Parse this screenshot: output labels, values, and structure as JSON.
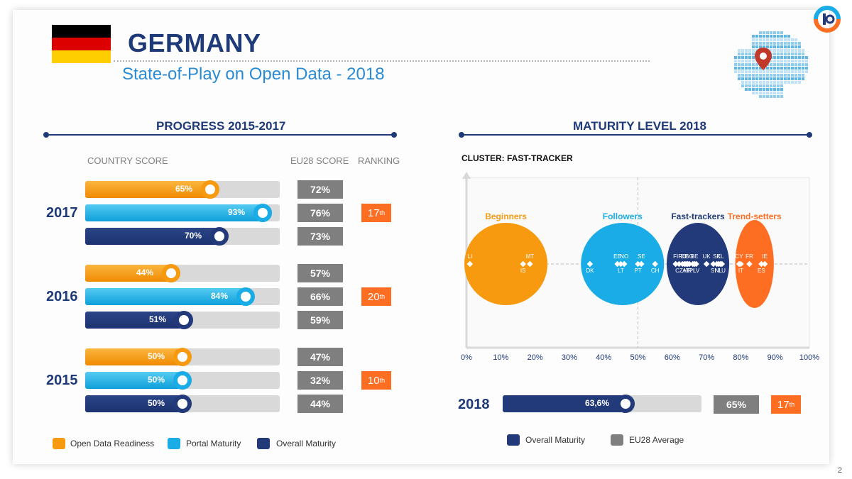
{
  "header": {
    "title": "GERMANY",
    "subtitle": "State-of-Play on Open Data - 2018",
    "flag_colors": [
      "#000000",
      "#dd0000",
      "#ffce00"
    ]
  },
  "progress": {
    "section_title": "PROGRESS 2015-2017",
    "col_country": "COUNTRY SCORE",
    "col_eu28": "EU28 SCORE",
    "col_ranking": "RANKING",
    "years": [
      {
        "year": "2017",
        "bars": [
          {
            "metric": "Open Data Readiness",
            "value": 65,
            "label": "65%",
            "eu28": "72%"
          },
          {
            "metric": "Portal Maturity",
            "value": 93,
            "label": "93%",
            "eu28": "76%"
          },
          {
            "metric": "Overall Maturity",
            "value": 70,
            "label": "70%",
            "eu28": "73%"
          }
        ],
        "rank_num": "17",
        "rank_suffix": "th"
      },
      {
        "year": "2016",
        "bars": [
          {
            "metric": "Open Data Readiness",
            "value": 44,
            "label": "44%",
            "eu28": "57%"
          },
          {
            "metric": "Portal Maturity",
            "value": 84,
            "label": "84%",
            "eu28": "66%"
          },
          {
            "metric": "Overall Maturity",
            "value": 51,
            "label": "51%",
            "eu28": "59%"
          }
        ],
        "rank_num": "20",
        "rank_suffix": "th"
      },
      {
        "year": "2015",
        "bars": [
          {
            "metric": "Open Data Readiness",
            "value": 50,
            "label": "50%",
            "eu28": "47%"
          },
          {
            "metric": "Portal Maturity",
            "value": 50,
            "label": "50%",
            "eu28": "32%"
          },
          {
            "metric": "Overall Maturity",
            "value": 50,
            "label": "50%",
            "eu28": "44%"
          }
        ],
        "rank_num": "10",
        "rank_suffix": "th"
      }
    ],
    "legend": [
      "Open Data Readiness",
      "Portal Maturity",
      "Overall Maturity"
    ],
    "colors": {
      "readiness": "#f79a10",
      "portal": "#1aace6",
      "overall": "#233a7a",
      "eu28": "#7f7f7f",
      "rank": "#fd6d22"
    }
  },
  "maturity": {
    "section_title": "MATURITY LEVEL 2018",
    "cluster_label": "CLUSTER: FAST-TRACKER",
    "summary": {
      "year": "2018",
      "value": 63.6,
      "label": "63,6%",
      "eu28": "65%",
      "rank_num": "17",
      "rank_suffix": "th"
    },
    "legend": [
      "Overall Maturity",
      "EU28 Average"
    ]
  },
  "chart_data": {
    "type": "scatter",
    "x_ticks": [
      "0%",
      "10%",
      "20%",
      "30%",
      "40%",
      "50%",
      "60%",
      "70%",
      "80%",
      "90%",
      "100%"
    ],
    "xlim": [
      0,
      100
    ],
    "clusters": [
      {
        "name": "Beginners",
        "color": "#f79a10",
        "x_range": [
          0,
          23
        ]
      },
      {
        "name": "Followers",
        "color": "#1aace6",
        "x_range": [
          34,
          57
        ]
      },
      {
        "name": "Fast-trackers",
        "color": "#233a7a",
        "x_range": [
          59,
          76
        ]
      },
      {
        "name": "Trend-setters",
        "color": "#fd6d22",
        "x_range": [
          79,
          89
        ]
      }
    ],
    "countries": [
      {
        "code": "LI",
        "x": 1
      },
      {
        "code": "IS",
        "x": 16.5
      },
      {
        "code": "MT",
        "x": 18.5
      },
      {
        "code": "DK",
        "x": 36
      },
      {
        "code": "EE",
        "x": 44
      },
      {
        "code": "LT",
        "x": 45
      },
      {
        "code": "NO",
        "x": 46
      },
      {
        "code": "PT",
        "x": 50
      },
      {
        "code": "SE",
        "x": 51
      },
      {
        "code": "CH",
        "x": 55
      },
      {
        "code": "FI",
        "x": 61
      },
      {
        "code": "CZ",
        "x": 62
      },
      {
        "code": "RO",
        "x": 63
      },
      {
        "code": "AT",
        "x": 64
      },
      {
        "code": "DE",
        "x": 63.6
      },
      {
        "code": "HR",
        "x": 64.5
      },
      {
        "code": "BG",
        "x": 65
      },
      {
        "code": "PL",
        "x": 66
      },
      {
        "code": "BE",
        "x": 66.5
      },
      {
        "code": "LV",
        "x": 67
      },
      {
        "code": "UK",
        "x": 70
      },
      {
        "code": "SI",
        "x": 72
      },
      {
        "code": "SK",
        "x": 73
      },
      {
        "code": "NL",
        "x": 73.5
      },
      {
        "code": "EL",
        "x": 74
      },
      {
        "code": "LU",
        "x": 74.5
      },
      {
        "code": "CY",
        "x": 79.5
      },
      {
        "code": "IT",
        "x": 80
      },
      {
        "code": "FR",
        "x": 82.5
      },
      {
        "code": "ES",
        "x": 86
      },
      {
        "code": "IE",
        "x": 87
      }
    ]
  },
  "page_number": "2"
}
